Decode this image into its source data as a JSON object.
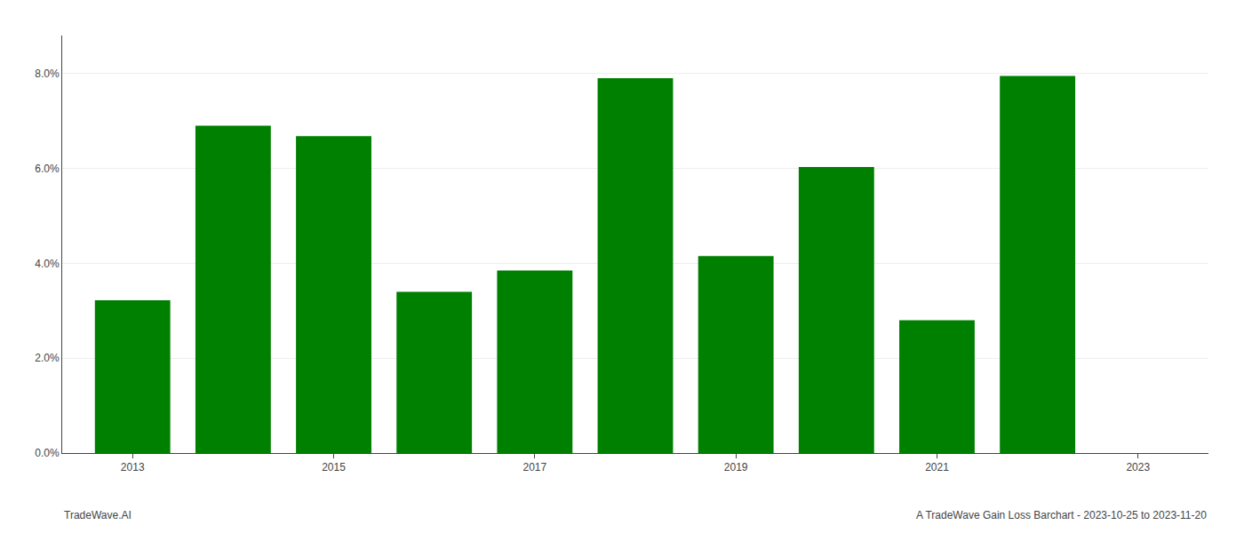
{
  "chart_data": {
    "type": "bar",
    "x": [
      2013,
      2014,
      2015,
      2016,
      2017,
      2018,
      2019,
      2020,
      2021,
      2022,
      2023
    ],
    "values": [
      0.0322,
      0.069,
      0.0668,
      0.034,
      0.0385,
      0.079,
      0.0415,
      0.0603,
      0.028,
      0.0795,
      0.0
    ],
    "color": "#008000",
    "xlim": [
      2012.3,
      2023.7
    ],
    "xticks": [
      2013,
      2015,
      2017,
      2019,
      2021,
      2023
    ],
    "ylim": [
      0,
      0.088
    ],
    "yticks": [
      {
        "value": 0.0,
        "label": "0.0%"
      },
      {
        "value": 0.02,
        "label": "2.0%"
      },
      {
        "value": 0.04,
        "label": "4.0%"
      },
      {
        "value": 0.06,
        "label": "6.0%"
      },
      {
        "value": 0.08,
        "label": "8.0%"
      }
    ],
    "grid": true,
    "annotations": [
      "TradeWave.AI",
      "A TradeWave Gain Loss Barchart - 2023-10-25 to 2023-11-20"
    ]
  }
}
